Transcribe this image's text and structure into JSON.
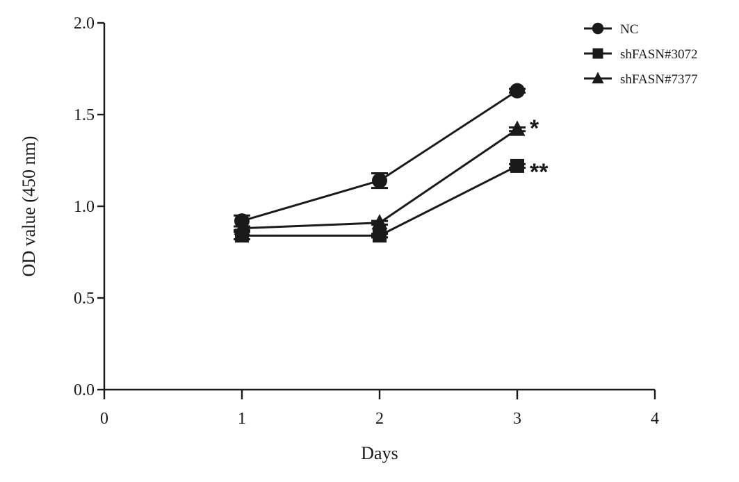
{
  "chart_data": {
    "type": "line",
    "title": "",
    "xlabel": "Days",
    "ylabel": "OD  value (450 nm)",
    "xlim": [
      0,
      4
    ],
    "ylim": [
      0.0,
      2.0
    ],
    "x_ticks": [
      0,
      1,
      2,
      3,
      4
    ],
    "y_ticks": [
      0.0,
      0.5,
      1.0,
      1.5,
      2.0
    ],
    "x_tick_labels": [
      "0",
      "1",
      "2",
      "3",
      "4"
    ],
    "y_tick_labels": [
      "0.0",
      "0.5",
      "1.0",
      "1.5",
      "2.0"
    ],
    "legend_position": "top-right",
    "grid": false,
    "series": [
      {
        "name": "NC",
        "marker": "circle",
        "x": [
          1,
          2,
          3
        ],
        "y": [
          0.92,
          1.14,
          1.63
        ],
        "err": [
          0.03,
          0.04,
          0.01
        ]
      },
      {
        "name": "shFASN#3072",
        "marker": "square",
        "x": [
          1,
          2,
          3
        ],
        "y": [
          0.84,
          0.84,
          1.22
        ],
        "err": [
          0.02,
          0.01,
          0.01
        ]
      },
      {
        "name": "shFASN#7377",
        "marker": "triangle",
        "x": [
          1,
          2,
          3
        ],
        "y": [
          0.88,
          0.91,
          1.42
        ],
        "err": [
          0.01,
          0.01,
          0.01
        ]
      }
    ],
    "annotations": [
      {
        "text": "*",
        "series": "shFASN#7377",
        "x": 3
      },
      {
        "text": "**",
        "series": "shFASN#3072",
        "x": 3
      }
    ]
  }
}
